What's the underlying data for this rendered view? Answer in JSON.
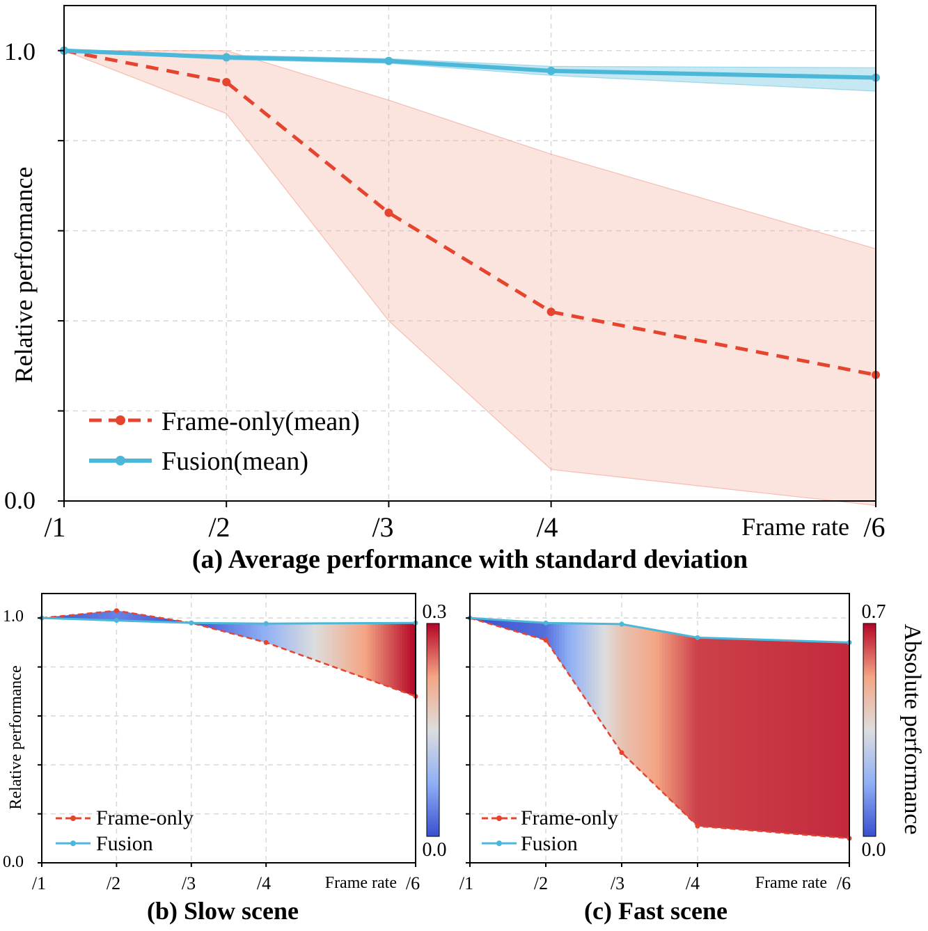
{
  "colors": {
    "frame_only": "#e5452f",
    "fusion": "#4bb7d9",
    "frame_band": "#f4a897",
    "fusion_band": "#7fcbe4",
    "grid": "#d8d8d8",
    "axis": "#000000",
    "cmap_low": "#3a4fcf",
    "cmap_mid": "#dddddd",
    "cmap_high": "#b40426"
  },
  "chart_data": [
    {
      "id": "a",
      "type": "line",
      "title": "(a) Average performance with standard deviation",
      "xlabel": "Frame rate",
      "ylabel": "Relative performance",
      "categories": [
        "/1",
        "/2",
        "/3",
        "/4",
        "/6"
      ],
      "x": [
        1,
        2,
        3,
        4,
        6
      ],
      "ylim": [
        0.0,
        1.1
      ],
      "ytick_labels": [
        {
          "v": 1.0,
          "label": "1.0"
        },
        {
          "v": 0.0,
          "label": "0.0"
        }
      ],
      "ytick_marks": [
        0.0,
        0.2,
        0.4,
        0.6,
        0.8,
        1.0
      ],
      "grid": true,
      "legend_position": "bottom-left",
      "series": [
        {
          "name": "Frame-only(mean)",
          "key": "frame_only",
          "style": "dashed",
          "values": [
            1.0,
            0.93,
            0.64,
            0.42,
            0.28
          ],
          "band_upper": [
            1.0,
            1.0,
            0.89,
            0.77,
            0.56
          ],
          "band_lower": [
            1.0,
            0.86,
            0.4,
            0.07,
            -0.01
          ]
        },
        {
          "name": "Fusion(mean)",
          "key": "fusion",
          "style": "solid",
          "values": [
            1.0,
            0.985,
            0.977,
            0.955,
            0.94
          ],
          "band_upper": [
            1.0,
            0.99,
            0.982,
            0.965,
            0.962
          ],
          "band_lower": [
            1.0,
            0.98,
            0.972,
            0.945,
            0.91
          ]
        }
      ]
    },
    {
      "id": "b",
      "type": "line",
      "title": "(b) Slow scene",
      "xlabel": "Frame rate",
      "ylabel": "Relative performance",
      "categories": [
        "/1",
        "/2",
        "/3",
        "/4",
        "/6"
      ],
      "x": [
        1,
        2,
        3,
        4,
        6
      ],
      "ylim": [
        0.0,
        1.1
      ],
      "ytick_labels": [
        {
          "v": 1.0,
          "label": "1.0"
        },
        {
          "v": 0.0,
          "label": "0.0"
        }
      ],
      "ytick_marks": [
        0.0,
        0.2,
        0.4,
        0.6,
        0.8,
        1.0
      ],
      "grid": true,
      "legend_position": "bottom-left",
      "fill_between": true,
      "colorbar": {
        "label": "",
        "min": 0.0,
        "max": 0.3,
        "min_label": "0.0",
        "max_label": "0.3"
      },
      "series": [
        {
          "name": "Frame-only",
          "key": "frame_only",
          "style": "dashed",
          "values": [
            1.0,
            1.03,
            0.98,
            0.9,
            0.68
          ]
        },
        {
          "name": "Fusion",
          "key": "fusion",
          "style": "solid",
          "values": [
            1.0,
            0.99,
            0.98,
            0.977,
            0.98
          ]
        }
      ]
    },
    {
      "id": "c",
      "type": "line",
      "title": "(c) Fast scene",
      "xlabel": "Frame rate",
      "ylabel": "",
      "categories": [
        "/1",
        "/2",
        "/3",
        "/4",
        "/6"
      ],
      "x": [
        1,
        2,
        3,
        4,
        6
      ],
      "ylim": [
        0.0,
        1.1
      ],
      "ytick_labels": [],
      "ytick_marks": [
        0.0,
        0.2,
        0.4,
        0.6,
        0.8,
        1.0
      ],
      "grid": true,
      "legend_position": "bottom-left",
      "fill_between": true,
      "colorbar": {
        "label": "Absolute performance",
        "min": 0.0,
        "max": 0.7,
        "min_label": "0.0",
        "max_label": "0.7"
      },
      "series": [
        {
          "name": "Frame-only",
          "key": "frame_only",
          "style": "dashed",
          "values": [
            1.0,
            0.91,
            0.45,
            0.15,
            0.1
          ]
        },
        {
          "name": "Fusion",
          "key": "fusion",
          "style": "solid",
          "values": [
            1.0,
            0.98,
            0.975,
            0.92,
            0.9
          ]
        }
      ]
    }
  ]
}
